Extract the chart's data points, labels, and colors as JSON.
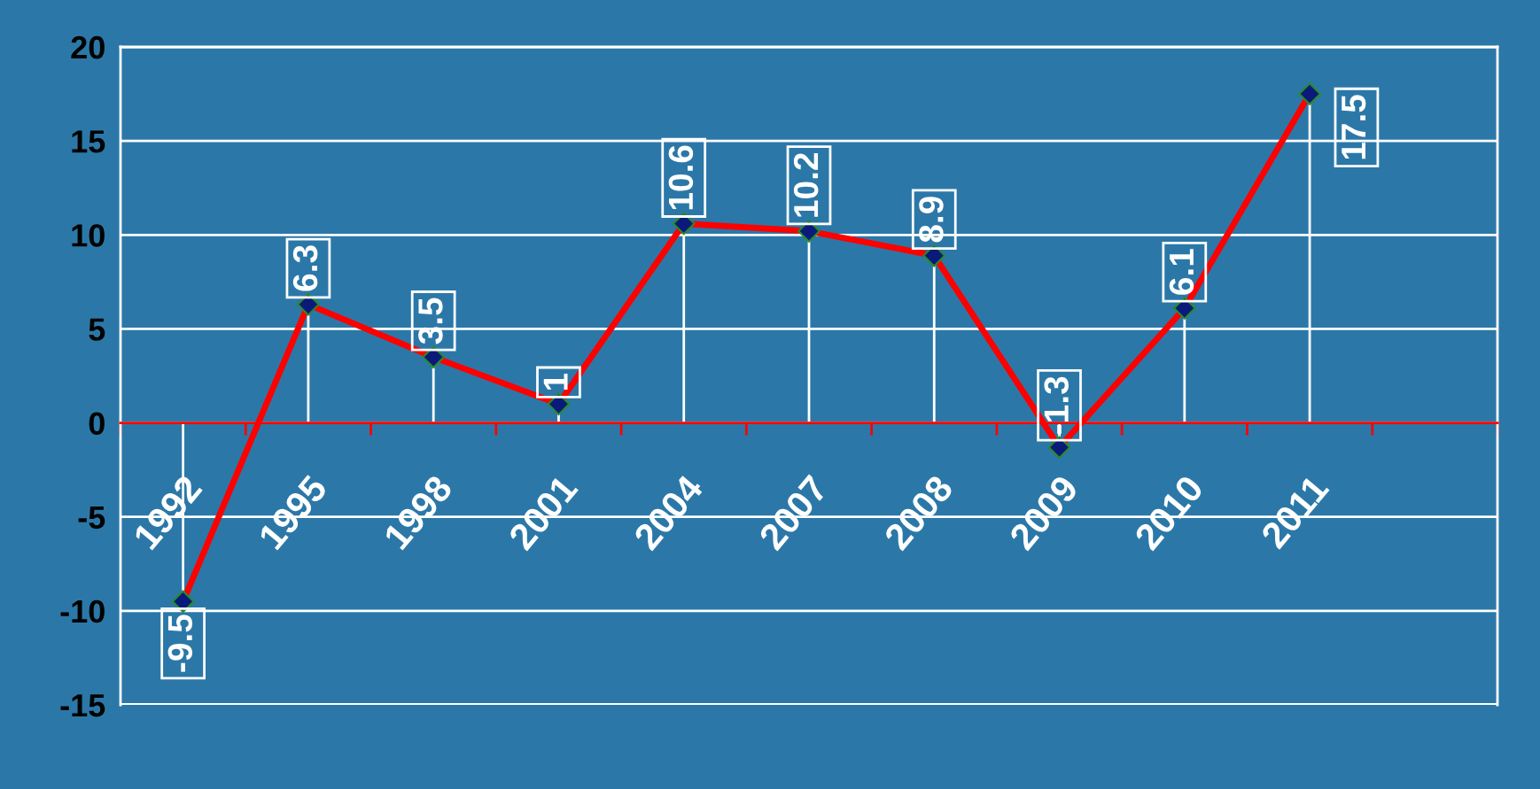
{
  "chart_data": {
    "type": "line",
    "categories": [
      "1992",
      "1995",
      "1998",
      "2001",
      "2004",
      "2007",
      "2008",
      "2009",
      "2010",
      "2011"
    ],
    "series": [
      {
        "color": "#ff0000",
        "values": [
          -9.5,
          6.3,
          3.5,
          1,
          10.6,
          10.2,
          8.9,
          -1.3,
          6.1,
          17.5
        ]
      }
    ],
    "ylim": [
      -15,
      20
    ],
    "yticks": [
      -15,
      -10,
      -5,
      0,
      5,
      10,
      15,
      20
    ],
    "grid": "y",
    "marker": "diamond",
    "line_style": "solid",
    "data_labels": true
  }
}
